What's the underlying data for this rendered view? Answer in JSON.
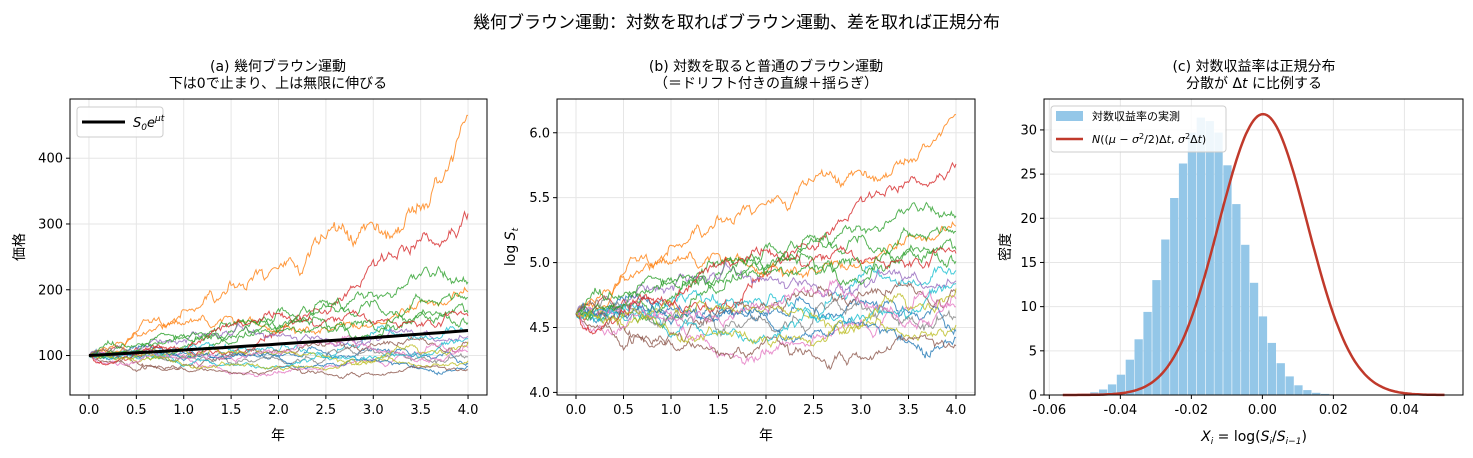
{
  "figure": {
    "suptitle": "幾何ブラウン運動：対数を取ればブラウン運動、差を取れば正規分布"
  },
  "chart_data": [
    {
      "type": "line",
      "panel": "a",
      "title_lines": [
        "(a) 幾何ブラウン運動",
        "下は0で止まり、上は無限に伸びる"
      ],
      "xlabel": "年",
      "ylabel": "価格",
      "xlim": [
        -0.2,
        4.2
      ],
      "ylim": [
        40,
        490
      ],
      "xticks": [
        0.0,
        0.5,
        1.0,
        1.5,
        2.0,
        2.5,
        3.0,
        3.5,
        4.0
      ],
      "xtick_labels": [
        "0.0",
        "0.5",
        "1.0",
        "1.5",
        "2.0",
        "2.5",
        "3.0",
        "3.5",
        "4.0"
      ],
      "yticks": [
        100,
        200,
        300,
        400
      ],
      "ytick_labels": [
        "100",
        "200",
        "300",
        "400"
      ],
      "grid": true,
      "legend": {
        "position": "top-left",
        "entries": [
          "S0e^μt"
        ]
      },
      "mean_line": {
        "name": "S0e^μt",
        "x": [
          0.0,
          4.0
        ],
        "y": [
          100,
          138
        ],
        "color": "#000000"
      },
      "path_end_values": [
        87,
        465,
        316,
        212,
        197,
        165,
        140,
        129,
        118,
        112,
        98,
        92,
        83,
        78,
        126,
        150,
        106,
        160,
        188,
        121
      ]
    },
    {
      "type": "line",
      "panel": "b",
      "title_lines": [
        "(b) 対数を取ると普通のブラウン運動",
        "（＝ドリフト付きの直線＋揺らぎ）"
      ],
      "xlabel": "年",
      "ylabel": "log S_t",
      "xlim": [
        -0.2,
        4.2
      ],
      "ylim": [
        3.98,
        6.26
      ],
      "xticks": [
        0.0,
        0.5,
        1.0,
        1.5,
        2.0,
        2.5,
        3.0,
        3.5,
        4.0
      ],
      "xtick_labels": [
        "0.0",
        "0.5",
        "1.0",
        "1.5",
        "2.0",
        "2.5",
        "3.0",
        "3.5",
        "4.0"
      ],
      "yticks": [
        4.0,
        4.5,
        5.0,
        5.5,
        6.0
      ],
      "ytick_labels": [
        "4.0",
        "4.5",
        "5.0",
        "5.5",
        "6.0"
      ],
      "grid": true,
      "start_value": 4.605,
      "path_end_values": [
        4.47,
        6.14,
        5.76,
        5.36,
        5.28,
        5.1,
        4.94,
        4.86,
        4.77,
        4.72,
        4.58,
        4.52,
        4.42,
        4.36,
        4.84,
        5.01,
        4.66,
        5.07,
        5.24,
        4.8
      ]
    },
    {
      "type": "bar",
      "panel": "c",
      "title_lines": [
        "(c) 対数収益率は正規分布",
        "分散が Δt に比例する"
      ],
      "xlabel": "X_i = log(S_i/S_{i-1})",
      "ylabel": "密度",
      "xlim": [
        -0.0615,
        0.0565
      ],
      "ylim": [
        0,
        33.5
      ],
      "xticks": [
        -0.06,
        -0.04,
        -0.02,
        0.0,
        0.02,
        0.04
      ],
      "xtick_labels": [
        "-0.06",
        "-0.04",
        "-0.02",
        "0.00",
        "0.02",
        "0.04"
      ],
      "yticks": [
        0,
        5,
        10,
        15,
        20,
        25,
        30
      ],
      "ytick_labels": [
        "0",
        "5",
        "10",
        "15",
        "20",
        "25",
        "30"
      ],
      "grid": true,
      "legend": {
        "position": "top-left",
        "entries": [
          "対数収益率の実測",
          "N((μ − σ²/2)Δt, σ²Δt)"
        ]
      },
      "histogram": {
        "name": "対数収益率の実測",
        "bin_start": -0.056,
        "bin_width": 0.0025,
        "color": "#94c7e8",
        "densities": [
          0.04,
          0.08,
          0.15,
          0.3,
          0.62,
          1.2,
          2.3,
          4.0,
          6.3,
          9.4,
          13.0,
          17.6,
          22.3,
          26.2,
          29.7,
          31.4,
          31.0,
          29.7,
          26.0,
          21.6,
          17.0,
          12.7,
          8.9,
          5.9,
          3.6,
          2.1,
          1.1,
          0.55,
          0.25,
          0.12,
          0.06,
          0.03,
          0.02,
          0.01,
          0.01,
          0.0,
          0.0,
          0.0,
          0.0,
          0.0,
          0.0,
          0.0,
          0.0
        ]
      },
      "normal_curve": {
        "name": "N((μ − σ²/2)Δt, σ²Δt)",
        "mean": 0.0002,
        "std": 0.01255,
        "x_range": [
          -0.0562,
          0.0513
        ],
        "color": "#c0392b"
      }
    }
  ]
}
